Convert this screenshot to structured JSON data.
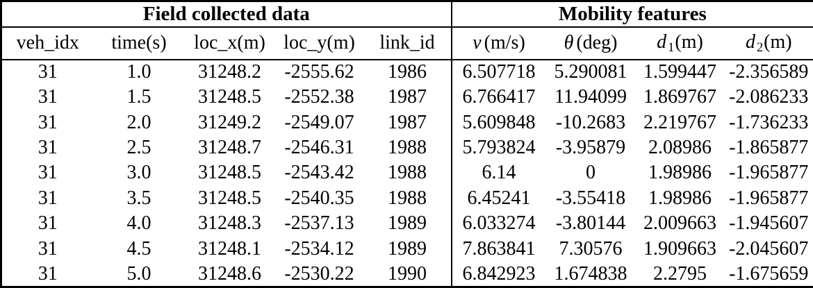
{
  "table": {
    "group_headers": [
      {
        "label": "Field collected data"
      },
      {
        "label": "Mobility features"
      }
    ],
    "columns": [
      {
        "label": "veh_idx"
      },
      {
        "label": "time(s)"
      },
      {
        "label": "loc_x(m)"
      },
      {
        "label": "loc_y(m)"
      },
      {
        "label": "link_id"
      },
      {
        "var": "v",
        "unit": "(m/s)"
      },
      {
        "var": "θ",
        "unit": "(deg)"
      },
      {
        "var": "d",
        "sub": "1",
        "unit": "(m)"
      },
      {
        "var": "d",
        "sub": "2",
        "unit": "(m)"
      }
    ],
    "rows": [
      [
        "31",
        "1.0",
        "31248.2",
        "-2555.62",
        "1986",
        "6.507718",
        "5.290081",
        "1.599447",
        "-2.356589"
      ],
      [
        "31",
        "1.5",
        "31248.5",
        "-2552.38",
        "1987",
        "6.766417",
        "11.94099",
        "1.869767",
        "-2.086233"
      ],
      [
        "31",
        "2.0",
        "31249.2",
        "-2549.07",
        "1987",
        "5.609848",
        "-10.2683",
        "2.219767",
        "-1.736233"
      ],
      [
        "31",
        "2.5",
        "31248.7",
        "-2546.31",
        "1988",
        "5.793824",
        "-3.95879",
        "2.08986",
        "-1.865877"
      ],
      [
        "31",
        "3.0",
        "31248.5",
        "-2543.42",
        "1988",
        "6.14",
        "0",
        "1.98986",
        "-1.965877"
      ],
      [
        "31",
        "3.5",
        "31248.5",
        "-2540.35",
        "1988",
        "6.45241",
        "-3.55418",
        "1.98986",
        "-1.965877"
      ],
      [
        "31",
        "4.0",
        "31248.3",
        "-2537.13",
        "1989",
        "6.033274",
        "-3.80144",
        "2.009663",
        "-1.945607"
      ],
      [
        "31",
        "4.5",
        "31248.1",
        "-2534.12",
        "1989",
        "7.863841",
        "7.30576",
        "1.909663",
        "-2.045607"
      ],
      [
        "31",
        "5.0",
        "31248.6",
        "-2530.22",
        "1990",
        "6.842923",
        "1.674838",
        "2.2795",
        "-1.675659"
      ]
    ],
    "colors": {
      "border": "#000000",
      "text": "#000000",
      "background": "#ffffff"
    }
  }
}
